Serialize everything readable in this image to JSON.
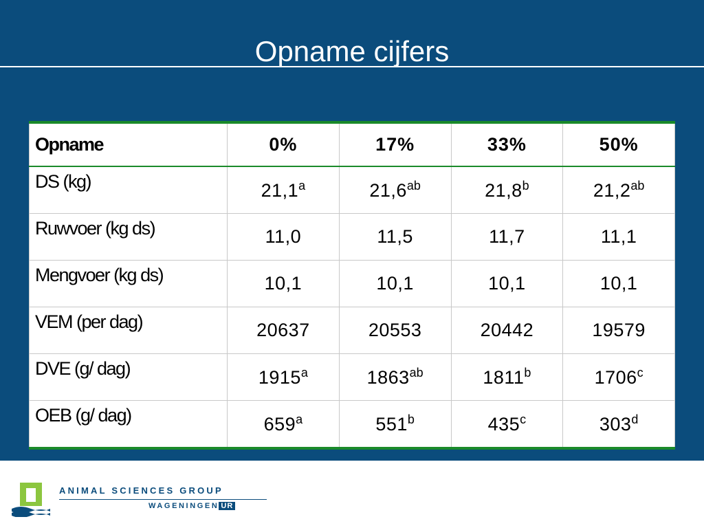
{
  "title": "Opname cijfers",
  "table": {
    "header": [
      "Opname",
      "0%",
      "17%",
      "33%",
      "50%"
    ],
    "rows": [
      {
        "label": "DS (kg)",
        "cells": [
          {
            "v": "21,1",
            "s": "a"
          },
          {
            "v": "21,6",
            "s": "ab"
          },
          {
            "v": "21,8",
            "s": "b"
          },
          {
            "v": "21,2",
            "s": "ab"
          }
        ]
      },
      {
        "label": "Ruwvoer (kg ds)",
        "cells": [
          {
            "v": "11,0",
            "s": ""
          },
          {
            "v": "11,5",
            "s": ""
          },
          {
            "v": "11,7",
            "s": ""
          },
          {
            "v": "11,1",
            "s": ""
          }
        ]
      },
      {
        "label": "Mengvoer (kg ds)",
        "cells": [
          {
            "v": "10,1",
            "s": ""
          },
          {
            "v": "10,1",
            "s": ""
          },
          {
            "v": "10,1",
            "s": ""
          },
          {
            "v": "10,1",
            "s": ""
          }
        ]
      },
      {
        "label": "VEM (per dag)",
        "cells": [
          {
            "v": "20637",
            "s": ""
          },
          {
            "v": "20553",
            "s": ""
          },
          {
            "v": "20442",
            "s": ""
          },
          {
            "v": "19579",
            "s": ""
          }
        ]
      },
      {
        "label": "DVE (g/ dag)",
        "cells": [
          {
            "v": "1915",
            "s": "a"
          },
          {
            "v": "1863",
            "s": "ab"
          },
          {
            "v": "1811",
            "s": "b"
          },
          {
            "v": "1706",
            "s": "c"
          }
        ]
      },
      {
        "label": "OEB (g/ dag)",
        "cells": [
          {
            "v": "659",
            "s": "a"
          },
          {
            "v": "551",
            "s": "b"
          },
          {
            "v": "435",
            "s": "c"
          },
          {
            "v": "303",
            "s": "d"
          }
        ]
      }
    ]
  },
  "footer": {
    "brand_line1": "ANIMAL SCIENCES GROUP",
    "brand_line2": "WAGENINGEN",
    "brand_ur": "UR",
    "logo_icon": "wageningen-ur-logo-icon"
  },
  "colors": {
    "background": "#0b4c7c",
    "table_accent": "#1a8a2a",
    "logo_green": "#8cc63f"
  }
}
